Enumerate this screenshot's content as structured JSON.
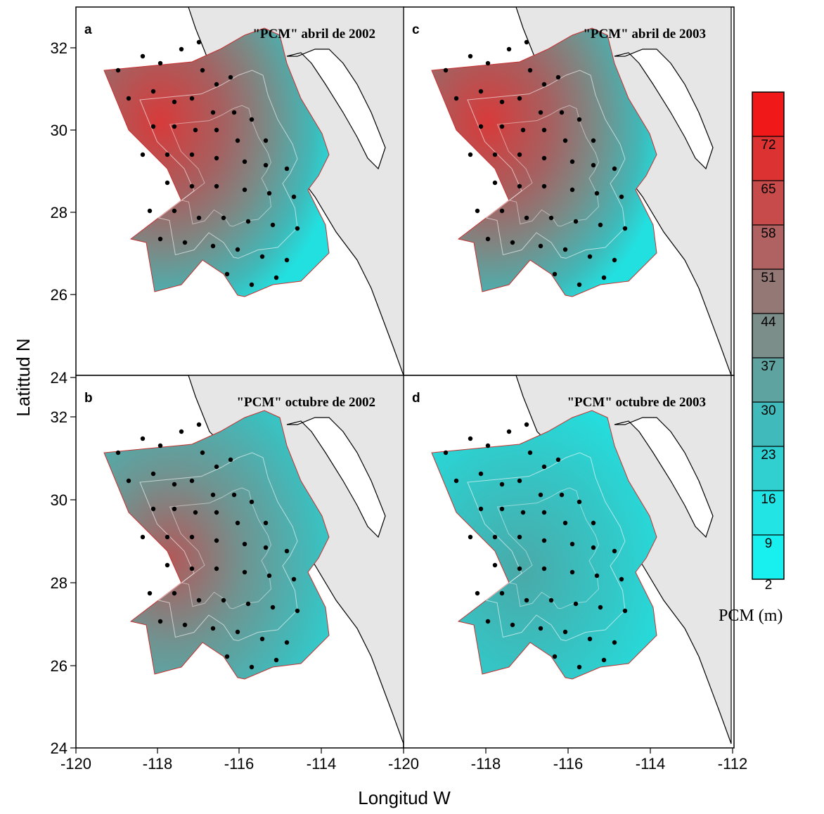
{
  "figure": {
    "ylabel": "Latittud N",
    "xlabel": "Longitud W"
  },
  "panels": [
    {
      "id": "a",
      "letter": "a",
      "title": "\"PCM\" abril de 2002",
      "palette": "warm"
    },
    {
      "id": "b",
      "letter": "b",
      "title": "\"PCM\" octubre de 2002",
      "palette": "mid"
    },
    {
      "id": "c",
      "letter": "c",
      "title": "\"PCM\" abril de 2003",
      "palette": "warm"
    },
    {
      "id": "d",
      "letter": "d",
      "title": "\"PCM\" octubre de 2003",
      "palette": "cool"
    }
  ],
  "axes": {
    "x_ticks_left": [
      "-120",
      "-118",
      "-116",
      "-114"
    ],
    "x_ticks_right": [
      "-120",
      "-118",
      "-116",
      "-114",
      "-112"
    ],
    "y_ticks_top": [
      "32",
      "30",
      "28",
      "26",
      "24"
    ],
    "y_ticks_bottom": [
      "32",
      "30",
      "28",
      "26",
      "24"
    ],
    "xlim": [
      -120,
      -112
    ],
    "ylim_panel": [
      24,
      33
    ]
  },
  "colorbar": {
    "title": "PCM (m)",
    "levels": [
      "2",
      "9",
      "16",
      "23",
      "30",
      "37",
      "44",
      "51",
      "58",
      "65",
      "72"
    ],
    "colors": [
      "#18f0f0",
      "#22e4e4",
      "#30cfd0",
      "#40baba",
      "#5ea3a0",
      "#7b8e8a",
      "#937876",
      "#b06262",
      "#c84b4b",
      "#dc3232",
      "#f01818"
    ]
  },
  "colors": {
    "land": "#e6e6e6",
    "coast": "#000000",
    "station": "#000000"
  }
}
